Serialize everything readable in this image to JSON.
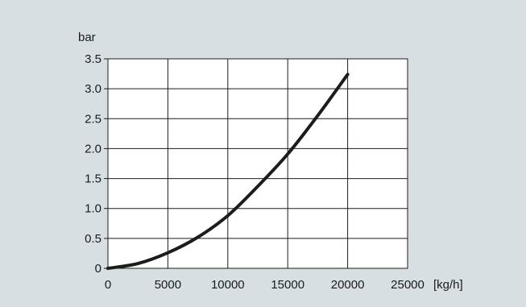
{
  "chart_data": {
    "type": "line",
    "title": "",
    "xlabel": "[kg/h]",
    "ylabel": "bar",
    "xlim": [
      0,
      25000
    ],
    "ylim": [
      0,
      3.5
    ],
    "x_ticks": [
      0,
      5000,
      10000,
      15000,
      20000,
      25000
    ],
    "x_tick_labels": [
      "0",
      "5000",
      "10000",
      "15000",
      "20000",
      "25000"
    ],
    "y_ticks": [
      0,
      0.5,
      1.0,
      1.5,
      2.0,
      2.5,
      3.0,
      3.5
    ],
    "y_tick_labels": [
      "0",
      "0.5",
      "1.0",
      "1.5",
      "2.0",
      "2.5",
      "3.0",
      "3.5"
    ],
    "grid": true,
    "legend": "none",
    "colors": {
      "background": "#d8dfe2",
      "plot_area": "#ffffff",
      "line": "#1c1c1c",
      "grid": "#1c1c1c"
    },
    "series": [
      {
        "x": [
          0,
          2500,
          5000,
          7500,
          10000,
          12500,
          15000,
          17500,
          20000
        ],
        "y": [
          0,
          0.08,
          0.26,
          0.52,
          0.88,
          1.37,
          1.91,
          2.55,
          3.24
        ]
      }
    ]
  }
}
